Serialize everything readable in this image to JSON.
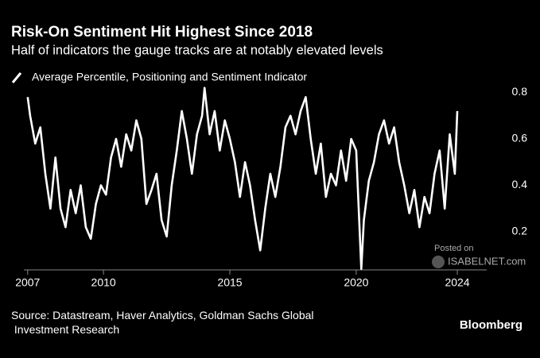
{
  "chart_data": {
    "type": "line",
    "title": "Risk-On Sentiment Hit Highest Since 2018",
    "subtitle": "Half of indicators the gauge tracks are at notably elevated levels",
    "source": "Source: Datastream, Haver Analytics, Goldman Sachs Global Investment Research",
    "brand": "Bloomberg",
    "watermark": [
      "Posted on",
      "ISABELNET.com"
    ],
    "x": [
      2007.0,
      2007.1,
      2007.3,
      2007.5,
      2007.7,
      2007.9,
      2008.1,
      2008.3,
      2008.5,
      2008.7,
      2008.9,
      2009.1,
      2009.3,
      2009.5,
      2009.7,
      2009.9,
      2010.1,
      2010.3,
      2010.5,
      2010.7,
      2010.9,
      2011.1,
      2011.3,
      2011.5,
      2011.7,
      2011.9,
      2012.1,
      2012.3,
      2012.5,
      2012.7,
      2012.9,
      2013.1,
      2013.3,
      2013.5,
      2013.7,
      2013.9,
      2014.0,
      2014.2,
      2014.4,
      2014.6,
      2014.8,
      2015.0,
      2015.2,
      2015.4,
      2015.6,
      2015.8,
      2016.0,
      2016.2,
      2016.4,
      2016.6,
      2016.8,
      2017.0,
      2017.2,
      2017.4,
      2017.6,
      2017.8,
      2018.0,
      2018.2,
      2018.4,
      2018.6,
      2018.8,
      2019.0,
      2019.2,
      2019.4,
      2019.6,
      2019.8,
      2020.0,
      2020.2,
      2020.3,
      2020.5,
      2020.7,
      2020.9,
      2021.1,
      2021.3,
      2021.5,
      2021.7,
      2021.9,
      2022.1,
      2022.3,
      2022.5,
      2022.7,
      2022.9,
      2023.1,
      2023.3,
      2023.5,
      2023.7,
      2023.9,
      2024.0
    ],
    "series": [
      {
        "name": "Average Percentile, Positioning and Sentiment Indicator",
        "color": "#ffffff",
        "values": [
          0.78,
          0.7,
          0.58,
          0.65,
          0.45,
          0.3,
          0.52,
          0.3,
          0.22,
          0.38,
          0.28,
          0.4,
          0.22,
          0.17,
          0.32,
          0.4,
          0.36,
          0.52,
          0.6,
          0.48,
          0.62,
          0.55,
          0.68,
          0.6,
          0.32,
          0.38,
          0.45,
          0.25,
          0.18,
          0.4,
          0.55,
          0.72,
          0.6,
          0.45,
          0.62,
          0.7,
          0.82,
          0.62,
          0.72,
          0.55,
          0.68,
          0.6,
          0.5,
          0.35,
          0.5,
          0.4,
          0.25,
          0.12,
          0.3,
          0.45,
          0.35,
          0.48,
          0.65,
          0.7,
          0.62,
          0.72,
          0.78,
          0.6,
          0.45,
          0.58,
          0.35,
          0.45,
          0.4,
          0.55,
          0.42,
          0.6,
          0.55,
          0.04,
          0.25,
          0.42,
          0.5,
          0.62,
          0.68,
          0.58,
          0.65,
          0.5,
          0.4,
          0.28,
          0.38,
          0.22,
          0.35,
          0.28,
          0.45,
          0.55,
          0.3,
          0.62,
          0.45,
          0.72
        ]
      }
    ],
    "xlim": [
      2006.85,
      2025.1
    ],
    "xticks": [
      2007,
      2010,
      2015,
      2020,
      2024
    ],
    "ylim": [
      0.04,
      0.84
    ],
    "yticks": [
      0.2,
      0.4,
      0.6,
      0.8
    ]
  }
}
